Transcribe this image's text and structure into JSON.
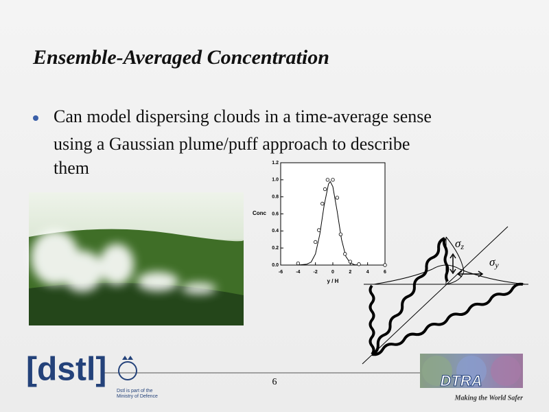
{
  "title": "Ensemble-Averaged Concentration",
  "bullets": [
    "Can model dispersing clouds in a time-average sense",
    "using a Gaussian plume/puff approach to describe",
    "them"
  ],
  "plot": {
    "type": "scatter",
    "x_label": "y / H",
    "y_label": "Conc",
    "xlim": [
      -6,
      6
    ],
    "ylim": [
      0,
      1.2
    ],
    "xticks": [
      -6,
      -4,
      -2,
      0,
      2,
      4,
      6
    ],
    "yticks": [
      {
        "value": 0,
        "label": "0.0"
      },
      {
        "value": 0.2,
        "label": "0.2"
      },
      {
        "value": 0.4,
        "label": "0.4"
      },
      {
        "value": 0.6,
        "label": "0.6"
      },
      {
        "value": 0.8,
        "label": "0.8"
      },
      {
        "value": 1.0,
        "label": "1.0"
      },
      {
        "value": 1.2,
        "label": "1.2"
      }
    ],
    "points": {
      "x": [
        -4,
        -2,
        -1.6,
        -1.2,
        -0.9,
        -0.6,
        0,
        0.5,
        0.9,
        1.4,
        2,
        3,
        6
      ],
      "y": [
        0.02,
        0.27,
        0.41,
        0.72,
        0.89,
        1.0,
        1.0,
        0.79,
        0.36,
        0.13,
        0.04,
        0.01,
        0
      ]
    },
    "curve": {
      "x": [
        -6,
        -4,
        -3,
        -2.5,
        -2,
        -1.5,
        -1,
        -0.5,
        -0.3,
        0,
        0.5,
        1,
        1.5,
        2,
        2.5,
        3,
        4,
        6
      ],
      "y": [
        0,
        0,
        0.01,
        0.034,
        0.13,
        0.36,
        0.7,
        0.95,
        0.98,
        0.92,
        0.63,
        0.3,
        0.1,
        0.026,
        0.004,
        0,
        0,
        0
      ]
    }
  },
  "diagram": {
    "sigma_z": {
      "symbol": "σ",
      "subscript": "z"
    },
    "sigma_y": {
      "symbol": "σ",
      "subscript": "y"
    }
  },
  "footer": {
    "page_number": "6",
    "logo": "[dstl]",
    "logo_note": [
      "Dstl is part of the",
      "Ministry of Defence"
    ],
    "agency": "DTRA",
    "slogan": "Making the World Safer"
  }
}
